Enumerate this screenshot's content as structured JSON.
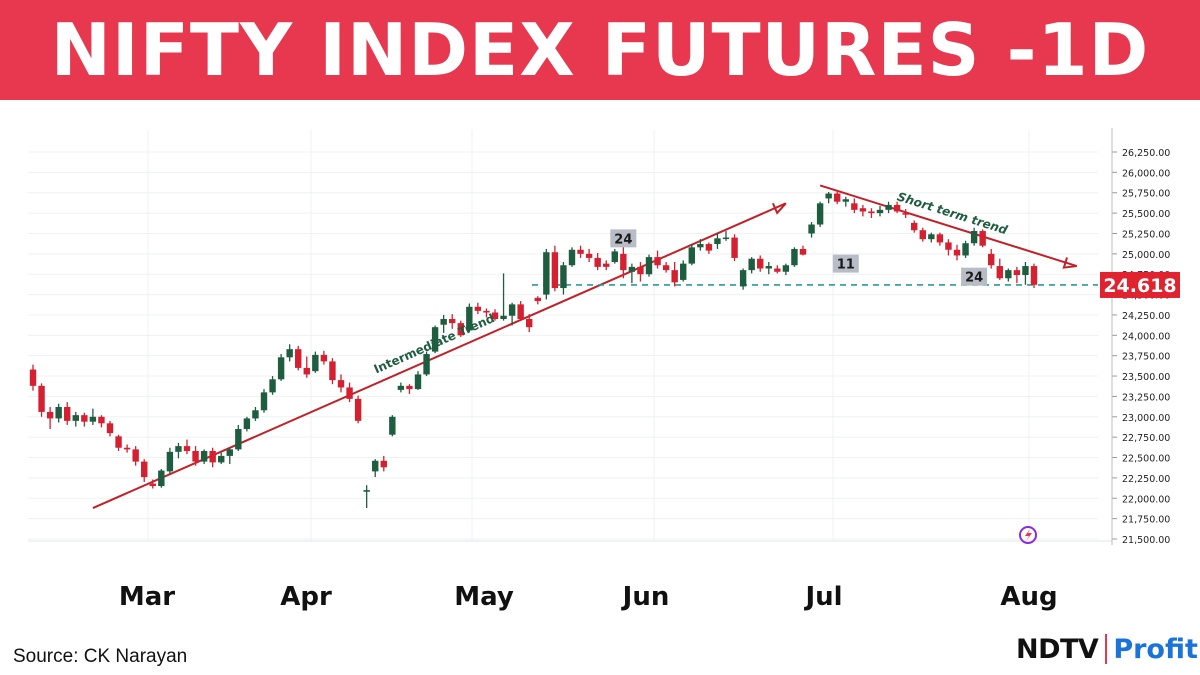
{
  "header": {
    "title": "NIFTY INDEX FUTURES -1D"
  },
  "footer": {
    "source": "Source: CK Narayan",
    "logo_main": "NDTV",
    "logo_sub": "Profit"
  },
  "colors": {
    "banner": "#e8384f",
    "up": "#1e5d3f",
    "down": "#d42030",
    "trend_line": "#c42028",
    "baseline": "#2a9aa0",
    "price_tag": "#e0232f",
    "marker_box": "#b8bcc6"
  },
  "chart_data": {
    "type": "candlestick",
    "title": "NIFTY INDEX FUTURES -1D",
    "ylim": [
      21500,
      26250
    ],
    "y_ticks": [
      "21,500.00",
      "21,750.00",
      "22,000.00",
      "22,250.00",
      "22,500.00",
      "22,750.00",
      "23,000.00",
      "23,250.00",
      "23,500.00",
      "23,750.00",
      "24,000.00",
      "24,250.00",
      "24,500.00",
      "24,750.00",
      "25,000.00",
      "25,250.00",
      "25,500.00",
      "25,750.00",
      "26,000.00",
      "26,250.00"
    ],
    "x_ticks": [
      "Mar",
      "Apr",
      "May",
      "Jun",
      "Jul",
      "Aug"
    ],
    "last_price_label": "24.618",
    "last_price": 24618,
    "candles": [
      [
        23580,
        23640,
        23320,
        23380
      ],
      [
        23380,
        23410,
        23000,
        23060
      ],
      [
        23060,
        23120,
        22850,
        22980
      ],
      [
        22980,
        23160,
        22930,
        23120
      ],
      [
        23120,
        23180,
        22900,
        22950
      ],
      [
        22950,
        23060,
        22880,
        23020
      ],
      [
        23020,
        23050,
        22880,
        22940
      ],
      [
        22940,
        23100,
        22900,
        23000
      ],
      [
        23000,
        23020,
        22870,
        22920
      ],
      [
        22920,
        22950,
        22760,
        22800
      ],
      [
        22760,
        22780,
        22580,
        22620
      ],
      [
        22620,
        22660,
        22560,
        22600
      ],
      [
        22600,
        22640,
        22400,
        22450
      ],
      [
        22450,
        22480,
        22200,
        22260
      ],
      [
        22180,
        22230,
        22120,
        22150
      ],
      [
        22150,
        22360,
        22130,
        22340
      ],
      [
        22330,
        22620,
        22300,
        22570
      ],
      [
        22570,
        22680,
        22490,
        22640
      ],
      [
        22640,
        22720,
        22540,
        22580
      ],
      [
        22580,
        22640,
        22400,
        22450
      ],
      [
        22450,
        22600,
        22420,
        22580
      ],
      [
        22580,
        22620,
        22380,
        22440
      ],
      [
        22440,
        22560,
        22420,
        22520
      ],
      [
        22520,
        22620,
        22420,
        22600
      ],
      [
        22600,
        22900,
        22580,
        22850
      ],
      [
        22850,
        23000,
        22820,
        22980
      ],
      [
        22980,
        23120,
        22950,
        23080
      ],
      [
        23080,
        23340,
        23050,
        23300
      ],
      [
        23300,
        23500,
        23270,
        23460
      ],
      [
        23460,
        23770,
        23440,
        23730
      ],
      [
        23730,
        23890,
        23680,
        23830
      ],
      [
        23830,
        23870,
        23570,
        23600
      ],
      [
        23600,
        23740,
        23480,
        23520
      ],
      [
        23560,
        23800,
        23540,
        23760
      ],
      [
        23760,
        23810,
        23640,
        23680
      ],
      [
        23680,
        23720,
        23400,
        23450
      ],
      [
        23450,
        23520,
        23300,
        23360
      ],
      [
        23360,
        23420,
        23180,
        23220
      ],
      [
        23220,
        23260,
        22920,
        22950
      ],
      [
        22080,
        22160,
        21880,
        22100
      ],
      [
        22330,
        22480,
        22260,
        22460
      ],
      [
        22460,
        22520,
        22330,
        22380
      ],
      [
        22780,
        23020,
        22760,
        23000
      ],
      [
        23330,
        23420,
        23300,
        23380
      ],
      [
        23380,
        23400,
        23280,
        23340
      ],
      [
        23340,
        23560,
        23330,
        23520
      ],
      [
        23520,
        23800,
        23500,
        23770
      ],
      [
        23800,
        24120,
        23780,
        24100
      ],
      [
        24130,
        24250,
        24030,
        24200
      ],
      [
        24200,
        24260,
        24080,
        24150
      ],
      [
        24150,
        24180,
        23980,
        24000
      ],
      [
        24060,
        24390,
        24040,
        24350
      ],
      [
        24350,
        24400,
        24260,
        24300
      ],
      [
        24300,
        24330,
        24220,
        24280
      ],
      [
        24280,
        24320,
        24180,
        24200
      ],
      [
        24200,
        24760,
        24180,
        24240
      ],
      [
        24240,
        24400,
        24120,
        24380
      ],
      [
        24380,
        24420,
        24180,
        24200
      ],
      [
        24200,
        24260,
        24040,
        24100
      ],
      [
        24460,
        24480,
        24380,
        24420
      ],
      [
        24500,
        25060,
        24440,
        25020
      ],
      [
        25020,
        25100,
        24540,
        24580
      ],
      [
        24580,
        24900,
        24500,
        24860
      ],
      [
        24860,
        25080,
        24840,
        25050
      ],
      [
        25050,
        25100,
        24950,
        25000
      ],
      [
        25000,
        25060,
        24900,
        24950
      ],
      [
        24950,
        25010,
        24800,
        24840
      ],
      [
        24880,
        24920,
        24800,
        24840
      ],
      [
        24900,
        25060,
        24880,
        25030
      ],
      [
        25000,
        25100,
        24700,
        24800
      ],
      [
        24780,
        24880,
        24640,
        24840
      ],
      [
        24840,
        24900,
        24660,
        24750
      ],
      [
        24750,
        24990,
        24720,
        24960
      ],
      [
        24960,
        25040,
        24820,
        24860
      ],
      [
        24860,
        24900,
        24770,
        24800
      ],
      [
        24800,
        24900,
        24600,
        24650
      ],
      [
        24680,
        24920,
        24660,
        24880
      ],
      [
        24880,
        25120,
        24860,
        25080
      ],
      [
        25080,
        25180,
        25040,
        25120
      ],
      [
        25120,
        25140,
        25000,
        25040
      ],
      [
        25120,
        25260,
        25060,
        25190
      ],
      [
        25190,
        25280,
        25160,
        25200
      ],
      [
        25200,
        25240,
        24910,
        24950
      ],
      [
        24600,
        24820,
        24560,
        24800
      ],
      [
        24800,
        24960,
        24760,
        24940
      ],
      [
        24940,
        24980,
        24780,
        24820
      ],
      [
        24820,
        24900,
        24750,
        24850
      ],
      [
        24820,
        24860,
        24760,
        24780
      ],
      [
        24780,
        24880,
        24740,
        24860
      ],
      [
        24860,
        25080,
        24840,
        25060
      ],
      [
        25060,
        25100,
        24980,
        24990
      ],
      [
        25250,
        25390,
        25200,
        25360
      ],
      [
        25360,
        25640,
        25330,
        25620
      ],
      [
        25680,
        25760,
        25620,
        25740
      ],
      [
        25740,
        25780,
        25610,
        25640
      ],
      [
        25640,
        25700,
        25580,
        25670
      ],
      [
        25620,
        25680,
        25500,
        25540
      ],
      [
        25560,
        25600,
        25460,
        25520
      ],
      [
        25520,
        25560,
        25440,
        25500
      ],
      [
        25500,
        25590,
        25460,
        25540
      ],
      [
        25540,
        25640,
        25500,
        25600
      ],
      [
        25600,
        25640,
        25500,
        25520
      ],
      [
        25500,
        25550,
        25440,
        25480
      ],
      [
        25380,
        25410,
        25260,
        25290
      ],
      [
        25290,
        25320,
        25150,
        25180
      ],
      [
        25180,
        25260,
        25140,
        25240
      ],
      [
        25240,
        25260,
        25100,
        25140
      ],
      [
        25140,
        25180,
        24980,
        25050
      ],
      [
        25050,
        25110,
        24920,
        24980
      ],
      [
        24980,
        25160,
        24950,
        25130
      ],
      [
        25130,
        25320,
        25100,
        25280
      ],
      [
        25280,
        25300,
        25080,
        25100
      ],
      [
        25000,
        25060,
        24820,
        24860
      ],
      [
        24850,
        24940,
        24680,
        24700
      ],
      [
        24700,
        24820,
        24660,
        24800
      ],
      [
        24800,
        24840,
        24640,
        24740
      ],
      [
        24740,
        24900,
        24620,
        24850
      ],
      [
        24850,
        24880,
        24580,
        24620
      ]
    ],
    "annotations": [
      {
        "text": "Intermediate Trend",
        "kind": "trend_line",
        "from": [
          7,
          21880
        ],
        "to": [
          88,
          25620
        ]
      },
      {
        "text": "Short term trend",
        "kind": "trend_line",
        "from": [
          92,
          25840
        ],
        "to": [
          122,
          24850
        ]
      },
      {
        "text": "24",
        "kind": "marker",
        "at": [
          69,
          25190
        ]
      },
      {
        "text": "11",
        "kind": "marker",
        "at": [
          95,
          24880
        ]
      },
      {
        "text": "24",
        "kind": "marker",
        "at": [
          110,
          24720
        ]
      },
      {
        "text": "",
        "kind": "support",
        "y": 24618
      }
    ]
  }
}
